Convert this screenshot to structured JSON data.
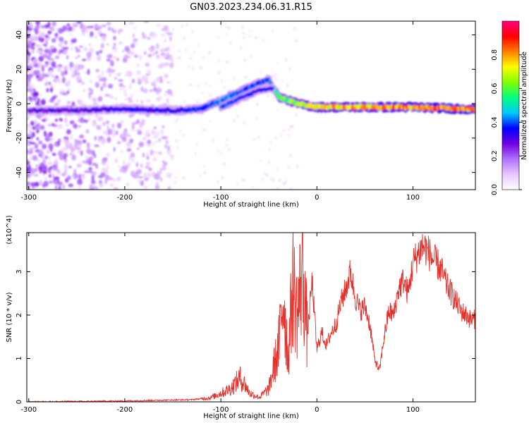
{
  "title": "GN03.2023.234.06.31.R15",
  "chart_data": [
    {
      "type": "heatmap",
      "xlabel": "Height of straight line (km)",
      "ylabel": "Frequency (Hz)",
      "xlim": [
        -302,
        165
      ],
      "ylim": [
        -50,
        48
      ],
      "xticks": [
        -300,
        -200,
        -100,
        0,
        100
      ],
      "yticks": [
        -40,
        -20,
        0,
        20,
        40
      ],
      "colorbar": {
        "label": "Normalized spectral amplitude",
        "range": [
          0,
          1
        ],
        "ticks": [
          "0.0",
          "0.2",
          "0.4",
          "0.6",
          "0.8"
        ],
        "stops": [
          "#ffffff",
          "#e8c8ff",
          "#b070ff",
          "#7000e0",
          "#0000ff",
          "#00c8ff",
          "#00ff80",
          "#80ff00",
          "#ffff00",
          "#ff8000",
          "#ff0000",
          "#ff0080"
        ]
      },
      "ridge": {
        "x": [
          -300,
          -250,
          -200,
          -150,
          -120,
          -100,
          -80,
          -60,
          -50,
          -40,
          -20,
          0,
          50,
          100,
          150,
          165
        ],
        "freq": [
          -4,
          -4,
          -3,
          -4,
          -3,
          2,
          7,
          12,
          14,
          4,
          0,
          -2,
          -2,
          -2,
          -3,
          -3
        ],
        "amplitude": [
          0.3,
          0.3,
          0.35,
          0.35,
          0.4,
          0.45,
          0.45,
          0.4,
          0.4,
          0.6,
          0.7,
          0.8,
          0.85,
          0.9,
          0.92,
          0.92
        ]
      },
      "secondary_ridge": {
        "x": [
          -100,
          -80,
          -60,
          -45
        ],
        "freq": [
          -2,
          3,
          8,
          9
        ],
        "amplitude": [
          0.4,
          0.4,
          0.35,
          0.35
        ]
      },
      "noise_region_x": [
        -302,
        -150
      ]
    },
    {
      "type": "line",
      "xlabel": "Height of straight line (km)",
      "ylabel": "SNR (10 * v/v)",
      "y_multiplier": "(x10^4)",
      "xlim": [
        -302,
        165
      ],
      "ylim": [
        0,
        3.9
      ],
      "xticks": [
        -300,
        -200,
        -100,
        0,
        100
      ],
      "yticks": [
        0,
        1,
        2,
        3
      ],
      "color": "#e8302a",
      "series": [
        {
          "x": [
            -302,
            -250,
            -200,
            -160,
            -130,
            -110,
            -100,
            -90,
            -80,
            -75,
            -70,
            -60,
            -50,
            -45,
            -40,
            -35,
            -30,
            -25,
            -20,
            -15,
            -10,
            -5,
            0,
            5,
            10,
            15,
            20,
            25,
            30,
            35,
            40,
            45,
            50,
            55,
            60,
            65,
            70,
            75,
            80,
            85,
            90,
            95,
            100,
            105,
            110,
            115,
            120,
            125,
            130,
            135,
            140,
            145,
            150,
            155,
            160,
            165
          ],
          "y": [
            0.0,
            0.01,
            0.02,
            0.04,
            0.05,
            0.1,
            0.2,
            0.3,
            0.55,
            0.4,
            0.2,
            0.1,
            0.3,
            0.8,
            1.2,
            2.5,
            1.0,
            2.7,
            2.0,
            3.2,
            1.5,
            2.8,
            1.2,
            1.6,
            1.3,
            1.6,
            1.8,
            2.3,
            2.6,
            3.0,
            2.4,
            2.1,
            2.2,
            1.8,
            1.0,
            0.7,
            1.5,
            2.1,
            2.0,
            2.6,
            2.8,
            2.5,
            3.2,
            3.4,
            3.6,
            3.5,
            3.3,
            3.2,
            3.0,
            2.7,
            2.5,
            2.3,
            2.1,
            2.0,
            1.9,
            1.9
          ]
        }
      ]
    }
  ]
}
